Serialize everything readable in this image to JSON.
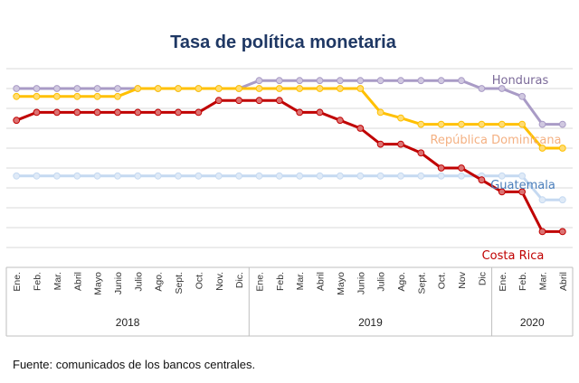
{
  "source_note": "Fuente: comunicados de los bancos centrales.",
  "chart_data": {
    "type": "line",
    "title": "Tasa de política monetaria",
    "xlabel": "",
    "ylabel": "",
    "grid": true,
    "legend": "inline labels at right end of lines",
    "ylim": [
      0,
      1.25
    ],
    "categories": [
      "Ene.",
      "Feb.",
      "Mar.",
      "Abril",
      "Mayo",
      "Junio",
      "Julio",
      "Ago.",
      "Sept.",
      "Oct.",
      "Nov.",
      "Dic.",
      "Ene.",
      "Feb.",
      "Mar.",
      "Abril",
      "Mayo",
      "Junio",
      "Julio",
      "Ago.",
      "Sept.",
      "Oct.",
      "Nov",
      "Dic",
      "Ene.",
      "Feb.",
      "Mar.",
      "Abril"
    ],
    "year_groups": [
      {
        "label": "2018",
        "count": 12
      },
      {
        "label": "2019",
        "count": 12
      },
      {
        "label": "2020",
        "count": 4
      }
    ],
    "series": [
      {
        "name": "Honduras",
        "color": "#a99bc6",
        "values": [
          1.125,
          1.125,
          1.125,
          1.125,
          1.125,
          1.125,
          1.125,
          1.125,
          1.125,
          1.125,
          1.125,
          1.125,
          1.175,
          1.175,
          1.175,
          1.175,
          1.175,
          1.175,
          1.175,
          1.175,
          1.175,
          1.175,
          1.175,
          1.125,
          1.125,
          1.075,
          0.9,
          0.9
        ]
      },
      {
        "name": "República Dominicana",
        "color": "#ffc000",
        "values": [
          1.075,
          1.075,
          1.075,
          1.075,
          1.075,
          1.075,
          1.125,
          1.125,
          1.125,
          1.125,
          1.125,
          1.125,
          1.125,
          1.125,
          1.125,
          1.125,
          1.125,
          1.125,
          0.975,
          0.94,
          0.9,
          0.9,
          0.9,
          0.9,
          0.9,
          0.9,
          0.75,
          0.75
        ]
      },
      {
        "name": "Guatemala",
        "color": "#c5d9f1",
        "values": [
          0.575,
          0.575,
          0.575,
          0.575,
          0.575,
          0.575,
          0.575,
          0.575,
          0.575,
          0.575,
          0.575,
          0.575,
          0.575,
          0.575,
          0.575,
          0.575,
          0.575,
          0.575,
          0.575,
          0.575,
          0.575,
          0.575,
          0.575,
          0.575,
          0.575,
          0.575,
          0.425,
          0.425
        ]
      },
      {
        "name": "Costa Rica",
        "color": "#c00000",
        "values": [
          0.925,
          0.975,
          0.975,
          0.975,
          0.975,
          0.975,
          0.975,
          0.975,
          0.975,
          0.975,
          1.05,
          1.05,
          1.05,
          1.05,
          0.975,
          0.975,
          0.925,
          0.875,
          0.775,
          0.775,
          0.72,
          0.625,
          0.625,
          0.55,
          0.475,
          0.475,
          0.225,
          0.225
        ]
      }
    ]
  }
}
